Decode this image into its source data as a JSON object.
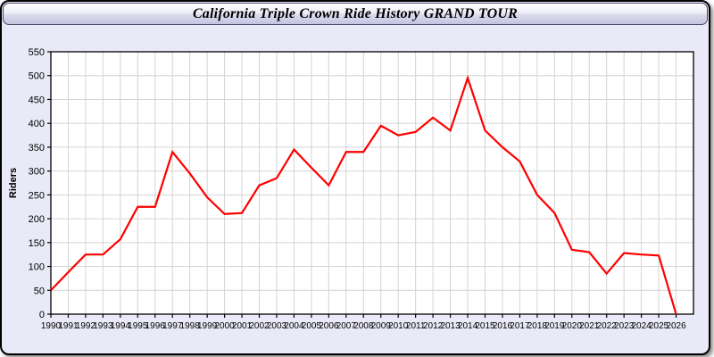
{
  "window": {
    "title": "California Triple Crown Ride History GRAND TOUR"
  },
  "chart_data": {
    "type": "line",
    "title": "California Triple Crown Ride History GRAND TOUR",
    "xlabel": "",
    "ylabel": "Riders",
    "x": [
      1990,
      1991,
      1992,
      1993,
      1994,
      1995,
      1996,
      1997,
      1998,
      1999,
      2000,
      2001,
      2002,
      2003,
      2004,
      2005,
      2006,
      2007,
      2008,
      2009,
      2010,
      2011,
      2012,
      2013,
      2014,
      2015,
      2016,
      2017,
      2018,
      2019,
      2020,
      2021,
      2022,
      2023,
      2024,
      2025,
      2026
    ],
    "series": [
      {
        "name": "Riders",
        "color": "#ff0000",
        "values": [
          50,
          88,
          125,
          125,
          157,
          225,
          225,
          340,
          295,
          245,
          210,
          212,
          270,
          285,
          345,
          307,
          270,
          340,
          340,
          395,
          375,
          382,
          412,
          385,
          495,
          385,
          350,
          320,
          250,
          212,
          135,
          130,
          85,
          128,
          125,
          123,
          0
        ]
      }
    ],
    "xlim": [
      1990,
      2027
    ],
    "ylim": [
      0,
      550
    ],
    "ytick_step": 50,
    "grid": true,
    "grid_color": "#d4d4d4",
    "plot_bg": "#ffffff",
    "panel_bg": "#e9e9f7",
    "axis_color": "#000000",
    "legend": "none"
  }
}
